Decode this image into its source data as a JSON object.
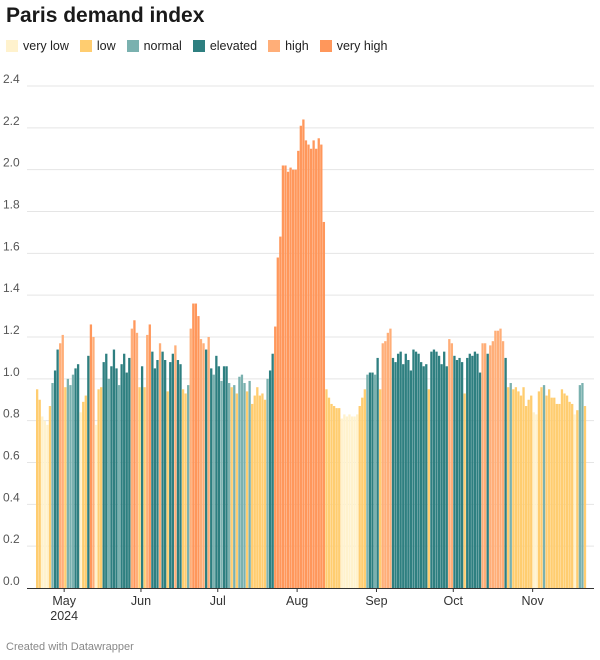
{
  "title": "Paris demand index",
  "footer": "Created with Datawrapper",
  "colors": {
    "very_low": "#fff2cd",
    "low": "#ffcd70",
    "normal": "#7ab1af",
    "elevated": "#2e7f80",
    "high": "#ffae78",
    "very_high": "#ff975b",
    "grid": "#e5e5e5",
    "axis": "#333333"
  },
  "legend": [
    {
      "key": "very_low",
      "label": "very low"
    },
    {
      "key": "low",
      "label": "low"
    },
    {
      "key": "normal",
      "label": "normal"
    },
    {
      "key": "elevated",
      "label": "elevated"
    },
    {
      "key": "high",
      "label": "high"
    },
    {
      "key": "very_high",
      "label": "very high"
    }
  ],
  "chart_data": {
    "type": "bar",
    "title": "Paris demand index",
    "ylim": [
      0,
      2.4
    ],
    "yticks": [
      "0.0",
      "0.2",
      "0.4",
      "0.6",
      "0.8",
      "1.0",
      "1.2",
      "1.4",
      "1.6",
      "1.8",
      "2.0",
      "2.2",
      "2.4"
    ],
    "grid": true,
    "start_date": "2024-04-21",
    "x_ticks": [
      {
        "label": "May",
        "sub": "2024",
        "day": 11
      },
      {
        "label": "Jun",
        "sub": "",
        "day": 41
      },
      {
        "label": "Jul",
        "sub": "",
        "day": 71
      },
      {
        "label": "Aug",
        "sub": "",
        "day": 102
      },
      {
        "label": "Sep",
        "sub": "",
        "day": 133
      },
      {
        "label": "Oct",
        "sub": "",
        "day": 163
      },
      {
        "label": "Nov",
        "sub": "",
        "day": 194
      }
    ],
    "categories_rule": "very low < 0.85 <= low < 0.97 <= normal < 1.03 <= elevated < 1.15 <= high < 1.25 <= very high",
    "values": [
      0.95,
      0.9,
      0.82,
      0.8,
      0.78,
      0.87,
      0.98,
      1.04,
      1.14,
      1.17,
      1.21,
      0.96,
      1.0,
      0.97,
      1.02,
      1.05,
      1.07,
      0.84,
      0.89,
      0.92,
      1.11,
      1.26,
      1.2,
      0.78,
      0.95,
      0.96,
      1.08,
      1.12,
      1.0,
      1.06,
      1.14,
      1.05,
      0.97,
      1.07,
      1.12,
      1.03,
      1.1,
      1.24,
      1.28,
      1.22,
      0.96,
      1.06,
      0.96,
      1.21,
      1.26,
      1.13,
      1.05,
      1.09,
      1.17,
      1.13,
      1.09,
      0.94,
      1.08,
      1.12,
      1.16,
      1.09,
      1.07,
      0.95,
      0.93,
      0.97,
      1.24,
      1.36,
      1.36,
      1.3,
      1.19,
      1.17,
      1.14,
      1.2,
      1.05,
      1.02,
      1.11,
      1.06,
      0.99,
      1.06,
      1.06,
      0.98,
      0.96,
      0.97,
      0.93,
      1.01,
      1.02,
      0.98,
      0.94,
      0.99,
      0.88,
      0.92,
      0.96,
      0.92,
      0.93,
      0.9,
      1.0,
      1.04,
      1.12,
      1.25,
      1.58,
      1.68,
      2.02,
      2.02,
      1.99,
      2.01,
      2.0,
      2.0,
      2.09,
      2.21,
      2.24,
      2.14,
      2.12,
      2.1,
      2.14,
      2.1,
      2.15,
      2.12,
      1.75,
      0.95,
      0.91,
      0.88,
      0.87,
      0.86,
      0.86,
      0.81,
      0.83,
      0.82,
      0.83,
      0.82,
      0.82,
      0.83,
      0.87,
      0.91,
      0.95,
      1.02,
      1.03,
      1.03,
      1.02,
      1.1,
      0.95,
      1.17,
      1.18,
      1.22,
      1.24,
      1.1,
      1.08,
      1.12,
      1.13,
      1.07,
      1.12,
      1.09,
      1.04,
      1.14,
      1.13,
      1.12,
      1.08,
      1.06,
      1.07,
      0.95,
      1.13,
      1.14,
      1.13,
      1.11,
      1.07,
      1.13,
      1.06,
      1.19,
      1.17,
      1.11,
      1.09,
      1.1,
      1.08,
      0.93,
      1.1,
      1.12,
      1.11,
      1.13,
      1.12,
      1.03,
      1.17,
      1.17,
      1.12,
      1.16,
      1.18,
      1.23,
      1.23,
      1.24,
      1.18,
      1.1,
      0.96,
      0.98,
      0.95,
      0.96,
      0.94,
      0.92,
      0.96,
      0.87,
      0.9,
      0.92,
      0.84,
      0.83,
      0.94,
      0.96,
      0.97,
      0.92,
      0.95,
      0.91,
      0.91,
      0.88,
      0.88,
      0.95,
      0.93,
      0.92,
      0.89,
      0.88,
      0.83,
      0.85,
      0.97,
      0.98,
      0.87
    ]
  }
}
